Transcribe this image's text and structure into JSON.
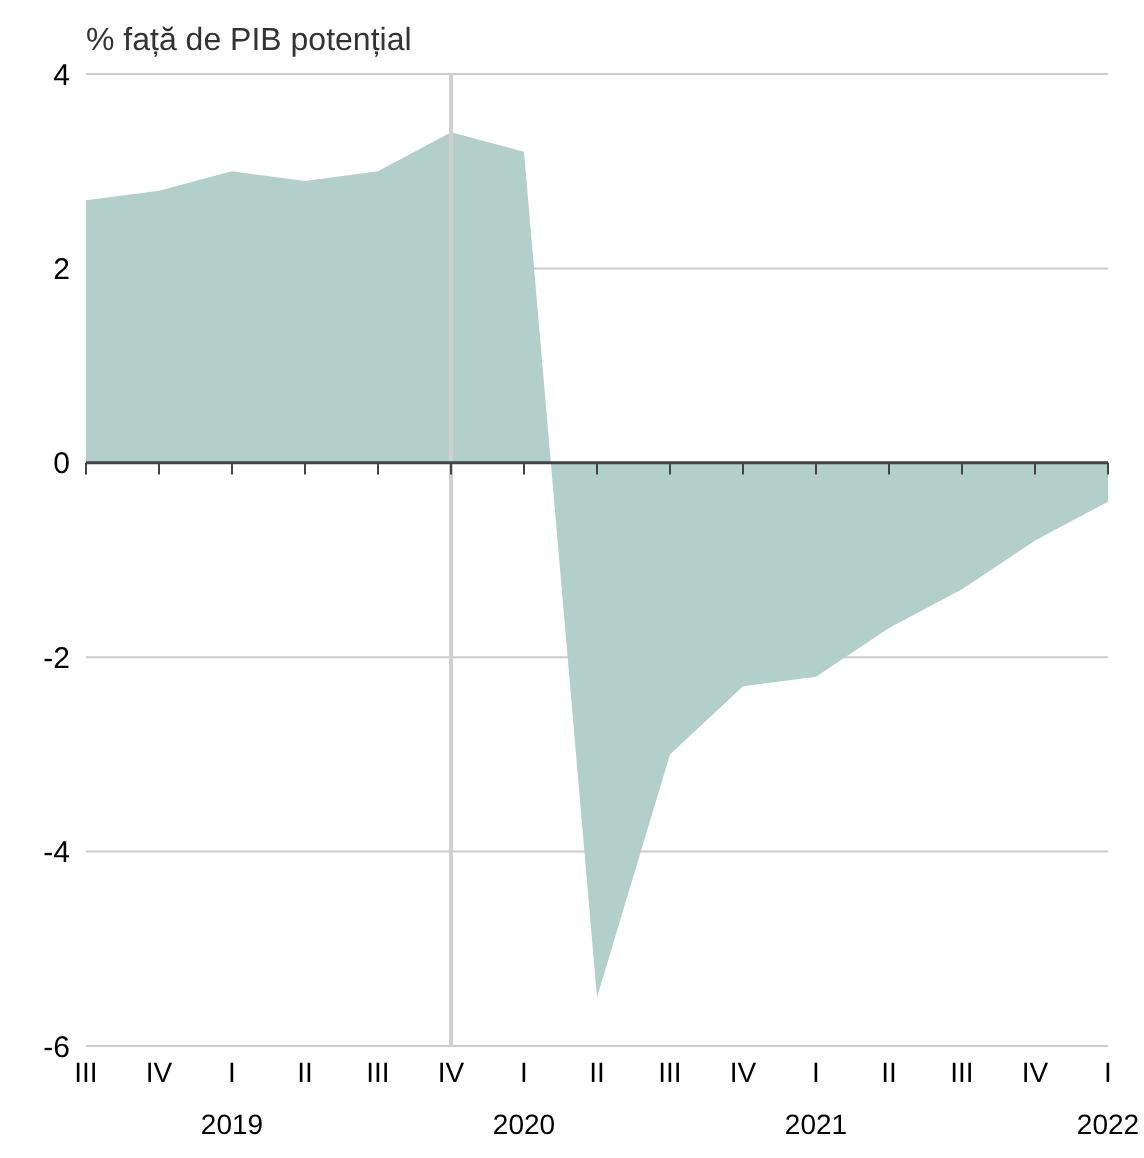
{
  "chart_data": {
    "type": "area",
    "ylabel": "% față de PIB potențial",
    "x": [
      "2018-07",
      "2018-10",
      "2019-01",
      "2019-04",
      "2019-07",
      "2019-10",
      "2020-01",
      "2020-04",
      "2020-07",
      "2020-10",
      "2021-01",
      "2021-04",
      "2021-07",
      "2021-10",
      "2022-01"
    ],
    "series": [
      {
        "color": "#b3cfca",
        "values": [
          2.7,
          2.8,
          3.0,
          2.9,
          3.0,
          3.4,
          3.2,
          -5.5,
          -3.0,
          -2.3,
          -2.2,
          -1.7,
          -1.3,
          -0.8,
          -0.4
        ]
      }
    ],
    "xlim": [
      "2018-07",
      "2022-01"
    ],
    "xticks": [
      {
        "value": "2018-07",
        "label": "III"
      },
      {
        "value": "2018-10",
        "label": "IV"
      },
      {
        "value": "2019-01",
        "label": "I\n2019"
      },
      {
        "value": "2019-04",
        "label": "II"
      },
      {
        "value": "2019-07",
        "label": "III"
      },
      {
        "value": "2019-10",
        "label": "IV"
      },
      {
        "value": "2020-01",
        "label": "I\n2020"
      },
      {
        "value": "2020-04",
        "label": "II"
      },
      {
        "value": "2020-07",
        "label": "III"
      },
      {
        "value": "2020-10",
        "label": "IV"
      },
      {
        "value": "2021-01",
        "label": "I\n2021"
      },
      {
        "value": "2021-04",
        "label": "II"
      },
      {
        "value": "2021-07",
        "label": "III"
      },
      {
        "value": "2021-10",
        "label": "IV"
      },
      {
        "value": "2022-01",
        "label": "I\n2022"
      }
    ],
    "ylim": [
      -6,
      4
    ],
    "yticks": [
      -6,
      -4,
      -2,
      0,
      2,
      4
    ],
    "grid": "y",
    "legend": false,
    "ref_lines": [
      {
        "axis": "x",
        "value": "2019-10",
        "color": "#d0d0d0"
      }
    ]
  }
}
